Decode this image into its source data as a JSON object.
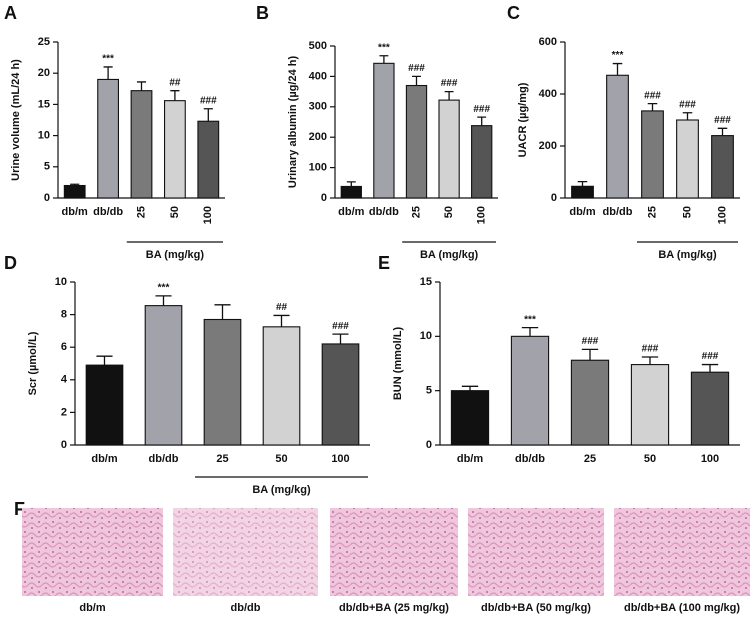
{
  "chart_data": [
    {
      "type": "bar",
      "panel": "A",
      "ylabel": "Urine volume (mL/24 h)",
      "categories": [
        "db/m",
        "db/db",
        "25",
        "50",
        "100"
      ],
      "values": [
        2.0,
        19.0,
        17.2,
        15.6,
        12.3
      ],
      "errors": [
        0.2,
        2.0,
        1.4,
        1.6,
        2.0
      ],
      "significance": [
        null,
        "***",
        null,
        "##",
        "###"
      ],
      "colors": [
        "#111111",
        "#a2a2aa",
        "#7a7a7a",
        "#d2d2d2",
        "#555555"
      ],
      "group_label": "BA (mg/kg)",
      "ylim": [
        0,
        25
      ],
      "yticks": [
        0,
        5,
        10,
        15,
        20,
        25
      ]
    },
    {
      "type": "bar",
      "panel": "B",
      "ylabel": "Urinary albumin (µg/24 h)",
      "categories": [
        "db/m",
        "db/db",
        "25",
        "50",
        "100"
      ],
      "values": [
        38,
        443,
        370,
        322,
        238
      ],
      "errors": [
        15,
        25,
        30,
        28,
        28
      ],
      "significance": [
        null,
        "***",
        "###",
        "###",
        "###"
      ],
      "colors": [
        "#111111",
        "#a2a2aa",
        "#7a7a7a",
        "#d2d2d2",
        "#555555"
      ],
      "group_label": "BA (mg/kg)",
      "ylim": [
        0,
        500
      ],
      "yticks": [
        0,
        100,
        200,
        300,
        400,
        500
      ]
    },
    {
      "type": "bar",
      "panel": "C",
      "ylabel": "UACR (µg/mg)",
      "categories": [
        "db/m",
        "db/db",
        "25",
        "50",
        "100"
      ],
      "values": [
        45,
        472,
        335,
        300,
        240
      ],
      "errors": [
        18,
        45,
        28,
        28,
        28
      ],
      "significance": [
        null,
        "***",
        "###",
        "###",
        "###"
      ],
      "colors": [
        "#111111",
        "#a2a2aa",
        "#7a7a7a",
        "#d2d2d2",
        "#555555"
      ],
      "group_label": "BA (mg/kg)",
      "ylim": [
        0,
        600
      ],
      "yticks": [
        0,
        200,
        400,
        600
      ]
    },
    {
      "type": "bar",
      "panel": "D",
      "ylabel": "Scr (µmol/L)",
      "categories": [
        "db/m",
        "db/db",
        "25",
        "50",
        "100"
      ],
      "values": [
        4.9,
        8.55,
        7.7,
        7.25,
        6.2
      ],
      "errors": [
        0.55,
        0.6,
        0.9,
        0.7,
        0.6
      ],
      "significance": [
        null,
        "***",
        null,
        "##",
        "###"
      ],
      "colors": [
        "#111111",
        "#a2a2aa",
        "#7a7a7a",
        "#d2d2d2",
        "#555555"
      ],
      "group_label": "BA (mg/kg)",
      "ylim": [
        0,
        10
      ],
      "yticks": [
        0,
        2,
        4,
        6,
        8,
        10
      ]
    },
    {
      "type": "bar",
      "panel": "E",
      "ylabel": "BUN (mmol/L)",
      "categories": [
        "db/m",
        "db/db",
        "25",
        "50",
        "100"
      ],
      "values": [
        5.0,
        10.0,
        7.8,
        7.4,
        6.7
      ],
      "errors": [
        0.4,
        0.8,
        1.0,
        0.7,
        0.7
      ],
      "significance": [
        null,
        "***",
        "###",
        "###",
        "###"
      ],
      "colors": [
        "#111111",
        "#a2a2aa",
        "#7a7a7a",
        "#d2d2d2",
        "#555555"
      ],
      "ylim": [
        0,
        15
      ],
      "yticks": [
        0,
        5,
        10,
        15
      ]
    }
  ],
  "histology": {
    "panel": "F",
    "labels": [
      "db/m",
      "db/db",
      "db/db+BA (25 mg/kg)",
      "db/db+BA (50 mg/kg)",
      "db/db+BA (100 mg/kg)"
    ]
  }
}
